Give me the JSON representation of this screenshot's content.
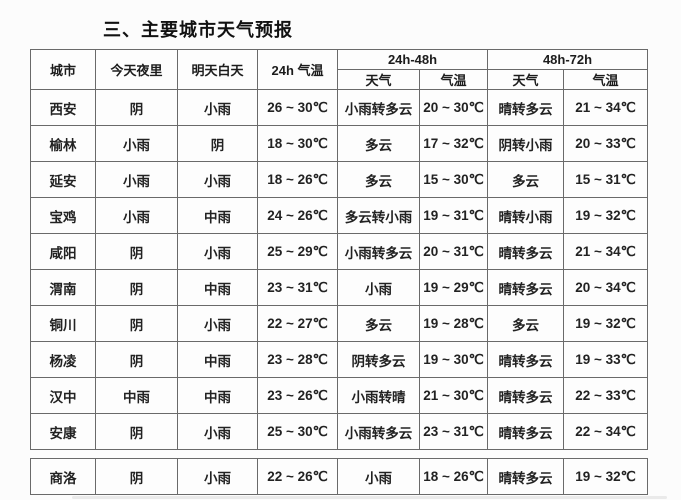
{
  "title": "三、主要城市天气预报",
  "colors": {
    "background": "#fcfcfc",
    "table_border": "#6a6a6a",
    "text": "#1c1c1c"
  },
  "table": {
    "headers": {
      "city": "城市",
      "tonight": "今天夜里",
      "tomorrow_day": "明天白天",
      "temp_24h": "24h 气温",
      "range_24_48": "24h-48h",
      "range_48_72": "48h-72h",
      "weather": "天气",
      "temp": "气温"
    },
    "rows": [
      [
        "西安",
        "阴",
        "小雨",
        "26 ~ 30℃",
        "小雨转多云",
        "20 ~ 30℃",
        "晴转多云",
        "21 ~ 34℃"
      ],
      [
        "榆林",
        "小雨",
        "阴",
        "18 ~ 30℃",
        "多云",
        "17 ~ 32℃",
        "阴转小雨",
        "20 ~ 33℃"
      ],
      [
        "延安",
        "小雨",
        "小雨",
        "18 ~ 26℃",
        "多云",
        "15 ~ 30℃",
        "多云",
        "15 ~ 31℃"
      ],
      [
        "宝鸡",
        "小雨",
        "中雨",
        "24 ~ 26℃",
        "多云转小雨",
        "19 ~ 31℃",
        "晴转小雨",
        "19 ~ 32℃"
      ],
      [
        "咸阳",
        "阴",
        "小雨",
        "25 ~ 29℃",
        "小雨转多云",
        "20 ~ 31℃",
        "晴转多云",
        "21 ~ 34℃"
      ],
      [
        "渭南",
        "阴",
        "中雨",
        "23 ~ 31℃",
        "小雨",
        "19 ~ 29℃",
        "晴转多云",
        "20 ~ 34℃"
      ],
      [
        "铜川",
        "阴",
        "小雨",
        "22 ~ 27℃",
        "多云",
        "19 ~ 28℃",
        "多云",
        "19 ~ 32℃"
      ],
      [
        "杨凌",
        "阴",
        "中雨",
        "23 ~ 28℃",
        "阴转多云",
        "19 ~ 30℃",
        "晴转多云",
        "19 ~ 33℃"
      ],
      [
        "汉中",
        "中雨",
        "中雨",
        "23 ~ 26℃",
        "小雨转晴",
        "21 ~ 30℃",
        "晴转多云",
        "22 ~ 33℃"
      ],
      [
        "安康",
        "阴",
        "小雨",
        "25 ~ 30℃",
        "小雨转多云",
        "23 ~ 31℃",
        "晴转多云",
        "22 ~ 34℃"
      ]
    ],
    "continued_rows": [
      [
        "商洛",
        "阴",
        "小雨",
        "22 ~ 26℃",
        "小雨",
        "18 ~ 26℃",
        "晴转多云",
        "19 ~ 32℃"
      ]
    ]
  }
}
